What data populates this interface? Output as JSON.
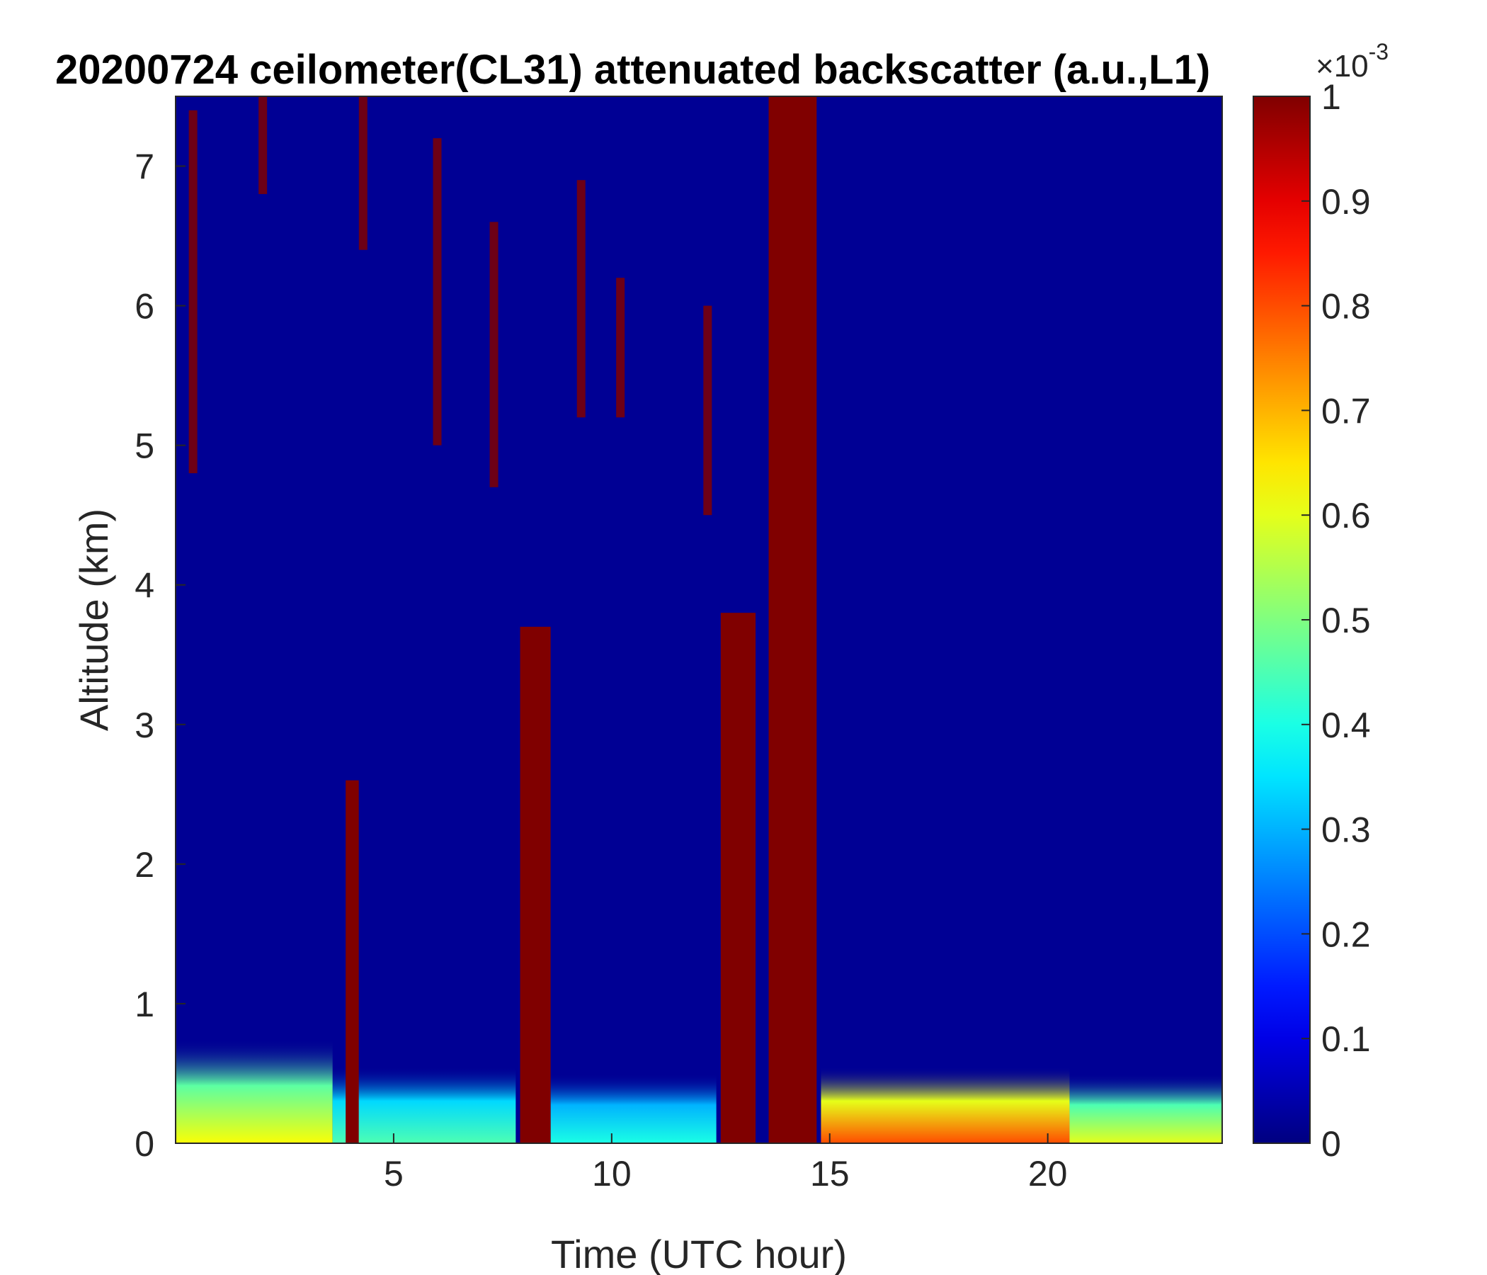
{
  "chart_data": {
    "type": "heatmap",
    "title": "20200724 ceilometer(CL31) attenuated backscatter (a.u.,L1)",
    "xlabel": "Time (UTC hour)",
    "ylabel": "Altitude (km)",
    "xlim": [
      0,
      24
    ],
    "ylim": [
      0,
      7.5
    ],
    "x_ticks": [
      5,
      10,
      15,
      20
    ],
    "y_ticks": [
      0,
      1,
      2,
      3,
      4,
      5,
      6,
      7
    ],
    "colorbar": {
      "range": [
        0,
        1
      ],
      "ticks": [
        0,
        0.1,
        0.2,
        0.3,
        0.4,
        0.5,
        0.6,
        0.7,
        0.8,
        0.9,
        1
      ],
      "tick_labels": [
        "0",
        "0.1",
        "0.2",
        "0.3",
        "0.4",
        "0.5",
        "0.6",
        "0.7",
        "0.8",
        "0.9",
        "1"
      ],
      "multiplier_base": "×10",
      "multiplier_exp": "-3",
      "colormap": "jet"
    },
    "features": {
      "background_level": 0.02,
      "surface_layer": [
        {
          "x0": 0.0,
          "x1": 3.6,
          "top": 0.75,
          "value": 0.62
        },
        {
          "x0": 3.6,
          "x1": 7.8,
          "top": 0.55,
          "value": 0.45
        },
        {
          "x0": 8.6,
          "x1": 12.4,
          "top": 0.5,
          "value": 0.4
        },
        {
          "x0": 14.8,
          "x1": 20.5,
          "top": 0.55,
          "value": 0.8
        },
        {
          "x0": 20.5,
          "x1": 24.0,
          "top": 0.5,
          "value": 0.6
        }
      ],
      "cloud_columns": [
        {
          "x0": 7.9,
          "x1": 8.6,
          "top": 3.7,
          "value": 1
        },
        {
          "x0": 12.5,
          "x1": 13.3,
          "top": 3.8,
          "value": 1
        },
        {
          "x0": 13.6,
          "x1": 14.7,
          "top": 7.5,
          "value": 1
        },
        {
          "x0": 3.9,
          "x1": 4.2,
          "top": 2.6,
          "value": 1
        }
      ],
      "aloft_streaks": [
        {
          "x": 0.4,
          "y0": 4.8,
          "y1": 7.4
        },
        {
          "x": 2.0,
          "y0": 6.8,
          "y1": 7.5
        },
        {
          "x": 4.3,
          "y0": 6.4,
          "y1": 7.5
        },
        {
          "x": 6.0,
          "y0": 5.0,
          "y1": 7.2
        },
        {
          "x": 7.3,
          "y0": 4.7,
          "y1": 6.6
        },
        {
          "x": 9.3,
          "y0": 5.2,
          "y1": 6.9
        },
        {
          "x": 10.2,
          "y0": 5.2,
          "y1": 6.2
        },
        {
          "x": 12.2,
          "y0": 4.5,
          "y1": 6.0
        }
      ]
    }
  }
}
